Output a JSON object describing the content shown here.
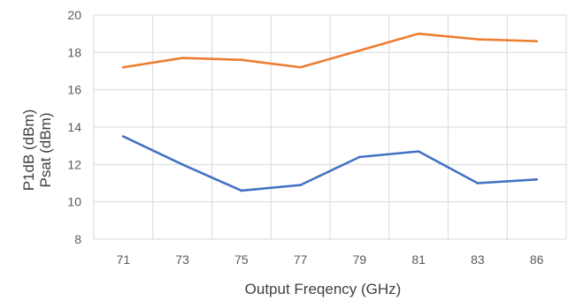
{
  "chart_data": {
    "type": "line",
    "title": "",
    "xlabel": "Output Freqency (GHz)",
    "ylabel_lines": [
      {
        "text": "P1dB (dBm)",
        "color": "#203864"
      },
      {
        "text": "Psat (dBm)",
        "color": "#C55A11"
      }
    ],
    "categories": [
      "71",
      "73",
      "75",
      "77",
      "79",
      "81",
      "83",
      "86"
    ],
    "ylim": [
      8,
      20
    ],
    "yticks": [
      "8",
      "10",
      "12",
      "14",
      "16",
      "18",
      "20"
    ],
    "grid": true,
    "series": [
      {
        "color": "#ED7D31",
        "values": [
          17.2,
          17.7,
          17.6,
          17.2,
          18.1,
          19.0,
          18.7,
          18.6
        ]
      },
      {
        "color": "#4472C4",
        "values": [
          13.5,
          12.0,
          10.6,
          10.9,
          12.4,
          12.7,
          11.0,
          11.2
        ]
      }
    ]
  }
}
